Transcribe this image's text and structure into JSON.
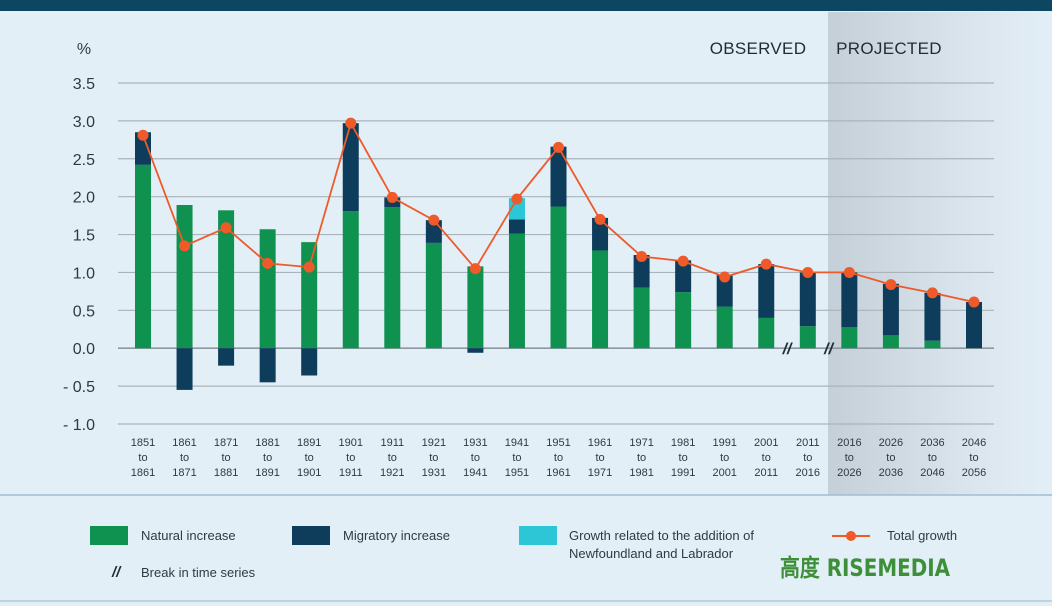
{
  "chart_data": {
    "type": "bar",
    "stacked": true,
    "unit_label": "%",
    "ylim": [
      -1.0,
      3.5
    ],
    "yticks": [
      "3.5",
      "3.0",
      "2.5",
      "2.0",
      "1.5",
      "1.0",
      "0.5",
      "0.0",
      "- 0.5",
      "- 1.0"
    ],
    "ytick_values": [
      3.5,
      3.0,
      2.5,
      2.0,
      1.5,
      1.0,
      0.5,
      0.0,
      -0.5,
      -1.0
    ],
    "periods": [
      [
        "1851",
        "to",
        "1861"
      ],
      [
        "1861",
        "to",
        "1871"
      ],
      [
        "1871",
        "to",
        "1881"
      ],
      [
        "1881",
        "to",
        "1891"
      ],
      [
        "1891",
        "to",
        "1901"
      ],
      [
        "1901",
        "to",
        "1911"
      ],
      [
        "1911",
        "to",
        "1921"
      ],
      [
        "1921",
        "to",
        "1931"
      ],
      [
        "1931",
        "to",
        "1941"
      ],
      [
        "1941",
        "to",
        "1951"
      ],
      [
        "1951",
        "to",
        "1961"
      ],
      [
        "1961",
        "to",
        "1971"
      ],
      [
        "1971",
        "to",
        "1981"
      ],
      [
        "1981",
        "to",
        "1991"
      ],
      [
        "1991",
        "to",
        "2001"
      ],
      [
        "2001",
        "to",
        "2011"
      ],
      [
        "2011",
        "to",
        "2016"
      ],
      [
        "2016",
        "to",
        "2026"
      ],
      [
        "2026",
        "to",
        "2036"
      ],
      [
        "2036",
        "to",
        "2046"
      ],
      [
        "2046",
        "to",
        "2056"
      ]
    ],
    "series": [
      {
        "name": "Natural increase",
        "color": "#0f9150",
        "values": [
          2.42,
          1.89,
          1.82,
          1.57,
          1.4,
          1.81,
          1.86,
          1.39,
          1.08,
          1.51,
          1.87,
          1.29,
          0.8,
          0.74,
          0.55,
          0.4,
          0.29,
          0.28,
          0.17,
          0.1,
          0.0
        ]
      },
      {
        "name": "Migratory increase",
        "color": "#0e3d5c",
        "values": [
          0.43,
          -0.55,
          -0.23,
          -0.45,
          -0.36,
          1.16,
          0.13,
          0.3,
          -0.06,
          0.19,
          0.79,
          0.43,
          0.43,
          0.42,
          0.42,
          0.71,
          0.71,
          0.72,
          0.68,
          0.63,
          0.61
        ]
      },
      {
        "name": "Growth related to the addition of Newfoundland and Labrador",
        "color": "#2cc6d6",
        "values": [
          0,
          0,
          0,
          0,
          0,
          0,
          0,
          0,
          0,
          0.28,
          0,
          0,
          0,
          0,
          0,
          0,
          0,
          0,
          0,
          0,
          0
        ]
      },
      {
        "name": "Total growth",
        "color": "#ee5a2a",
        "type": "line",
        "values": [
          2.81,
          1.35,
          1.59,
          1.12,
          1.07,
          2.97,
          1.99,
          1.69,
          1.05,
          1.97,
          2.65,
          1.7,
          1.21,
          1.15,
          0.94,
          1.11,
          1.0,
          1.0,
          0.84,
          0.73,
          0.61
        ]
      }
    ],
    "region_labels": {
      "observed": "OBSERVED",
      "projected": "PROJECTED"
    },
    "projected_start_index": 17,
    "break_marker": "//",
    "legend": [
      {
        "label": "Natural increase",
        "color": "#0f9150"
      },
      {
        "label": "Migratory increase",
        "color": "#0e3d5c"
      },
      {
        "label_lines": [
          "Growth related to the addition of",
          "Newfoundland and Labrador"
        ],
        "color": "#2cc6d6"
      },
      {
        "label": "Total growth",
        "color": "#ee5a2a"
      },
      {
        "label": "Break in time series",
        "symbol": "//"
      }
    ]
  },
  "watermark": {
    "text": "高度 RISEMEDIA"
  }
}
